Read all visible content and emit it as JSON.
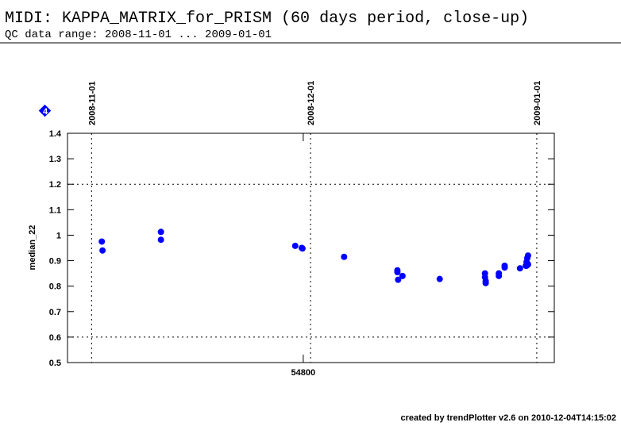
{
  "chart_data": {
    "type": "scatter",
    "title": "MIDI: KAPPA_MATRIX_for_PRISM (60 days period, close-up)",
    "subtitle": "QC data range: 2008-11-01 ... 2009-01-01",
    "y_label": "median_22",
    "footer": "created by trendPlotter v2.6 on 2010-12-04T14:15:02",
    "badge": "4",
    "color": "#0000ff",
    "xlim": [
      54767.7,
      54834.4
    ],
    "ylim": [
      0.5,
      1.4
    ],
    "xticks": [
      54800
    ],
    "yticks": [
      0.5,
      0.6,
      0.7,
      0.8,
      0.9,
      1,
      1.1,
      1.2,
      1.3,
      1.4
    ],
    "date_lines": [
      {
        "value": 54771,
        "label": "2008-11-01"
      },
      {
        "value": 54801,
        "label": "2008-12-01"
      },
      {
        "value": 54832,
        "label": "2009-01-01"
      }
    ],
    "threshold_lines": [
      0.6,
      1.2
    ],
    "x": [
      54772.4,
      54772.5,
      54780.5,
      54780.5,
      54798.9,
      54799.8,
      54799.9,
      54805.6,
      54812.9,
      54812.9,
      54813.0,
      54813.6,
      54818.7,
      54824.9,
      54824.9,
      54825.0,
      54825.0,
      54826.8,
      54826.8,
      54827.6,
      54827.6,
      54829.7,
      54830.5,
      54830.6,
      54830.7,
      54830.8,
      54830.7,
      54830.8,
      54830.6
    ],
    "values": [
      0.975,
      0.94,
      1.013,
      0.982,
      0.958,
      0.95,
      0.948,
      0.915,
      0.862,
      0.855,
      0.825,
      0.84,
      0.828,
      0.85,
      0.835,
      0.82,
      0.812,
      0.85,
      0.84,
      0.88,
      0.873,
      0.87,
      0.88,
      0.895,
      0.91,
      0.92,
      0.89,
      0.885,
      0.88
    ]
  }
}
